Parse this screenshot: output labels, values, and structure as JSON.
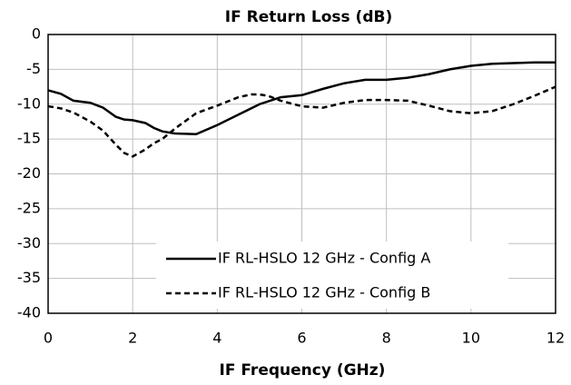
{
  "chart_data": {
    "type": "line",
    "title": "IF Return Loss (dB)",
    "x_label": "IF Frequency (GHz)",
    "x": [
      0,
      0.3,
      0.6,
      1,
      1.3,
      1.6,
      1.8,
      2,
      2.3,
      2.5,
      2.7,
      3,
      3.5,
      4,
      4.5,
      4.8,
      5,
      5.2,
      5.5,
      6,
      6.5,
      7,
      7.5,
      8,
      8.5,
      9,
      9.5,
      10,
      10.5,
      11,
      11.5,
      12
    ],
    "series": [
      {
        "name": "IF RL-HSLO 12 GHz - Config A",
        "color": "#000000",
        "dash": false,
        "values": [
          -8,
          -8.5,
          -9.5,
          -9.8,
          -10.5,
          -11.8,
          -12.2,
          -12.3,
          -12.7,
          -13.4,
          -13.9,
          -14.2,
          -14.3,
          -13,
          -11.5,
          -10.6,
          -10,
          -9.6,
          -9,
          -8.7,
          -7.8,
          -7,
          -6.5,
          -6.5,
          -6.2,
          -5.7,
          -5,
          -4.5,
          -4.2,
          -4.1,
          -4,
          -4
        ]
      },
      {
        "name": "IF RL-HSLO 12 GHz - Config B",
        "color": "#000000",
        "dash": true,
        "values": [
          -10.3,
          -10.6,
          -11.2,
          -12.5,
          -13.8,
          -15.8,
          -17,
          -17.5,
          -16.5,
          -15.6,
          -15,
          -13.5,
          -11.3,
          -10.2,
          -9,
          -8.6,
          -8.6,
          -8.8,
          -9.5,
          -10.3,
          -10.5,
          -9.8,
          -9.4,
          -9.4,
          -9.5,
          -10.2,
          -11,
          -11.3,
          -11,
          -10,
          -8.8,
          -7.5
        ]
      }
    ],
    "xlim": [
      0,
      12
    ],
    "xticks": [
      0,
      2,
      4,
      6,
      8,
      10,
      12
    ],
    "ylim": [
      -40,
      0
    ],
    "yticks": [
      0,
      -5,
      -10,
      -15,
      -20,
      -25,
      -30,
      -35,
      -40
    ],
    "grid": true,
    "legend": "bottom"
  }
}
